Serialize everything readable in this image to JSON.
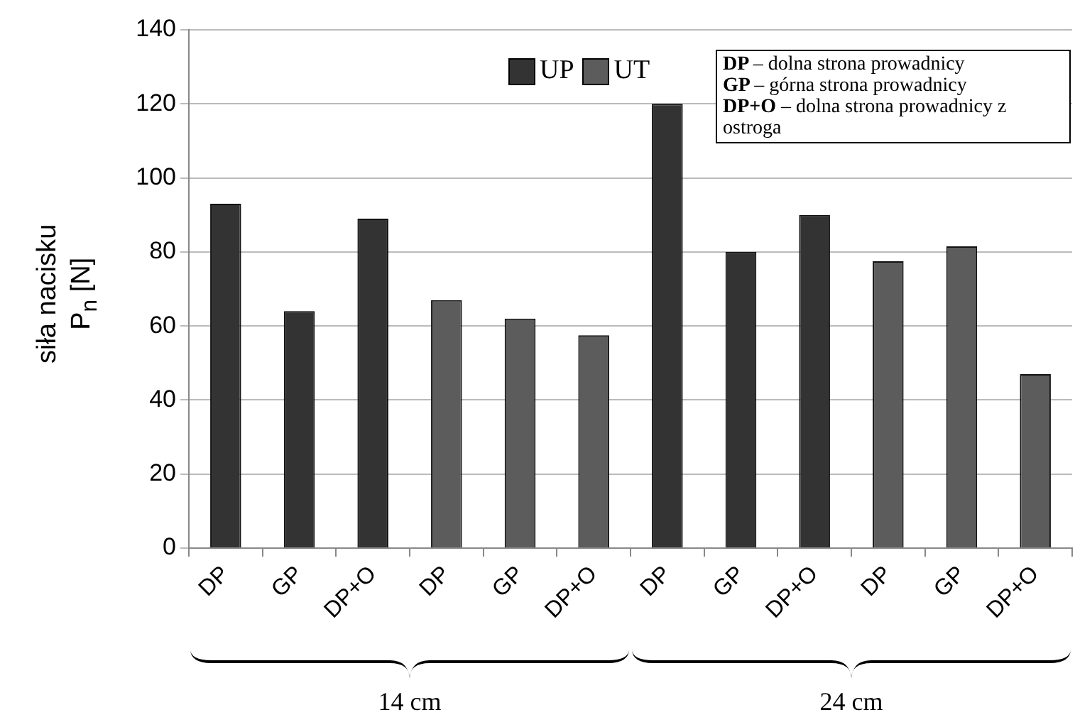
{
  "chart_data": {
    "type": "bar",
    "ylabel": "siła nacisku P$_{n}$ [N]",
    "categories": [
      "DP",
      "GP",
      "DP+O",
      "DP",
      "GP",
      "DP+O",
      "DP",
      "GP",
      "DP+O",
      "DP",
      "GP",
      "DP+O"
    ],
    "series": [
      {
        "name": "UP",
        "color": "#333333",
        "values": [
          93,
          64,
          89,
          null,
          null,
          null,
          120,
          80,
          90,
          null,
          null,
          null
        ]
      },
      {
        "name": "UT",
        "color": "#5c5c5c",
        "values": [
          null,
          null,
          null,
          67,
          62,
          57.5,
          null,
          null,
          null,
          77.5,
          81.5,
          47
        ]
      }
    ],
    "ylim": [
      0,
      140
    ],
    "yticks": [
      0,
      20,
      40,
      60,
      80,
      100,
      120,
      140
    ],
    "grid": "y",
    "legend": "top",
    "annotations": [
      "DP – dolna strona prowadnicy",
      "GP – górna strona prowadnicy",
      "DP+O – dolna strona prowadnicy z ostroga",
      "14 cm",
      "24 cm"
    ]
  }
}
